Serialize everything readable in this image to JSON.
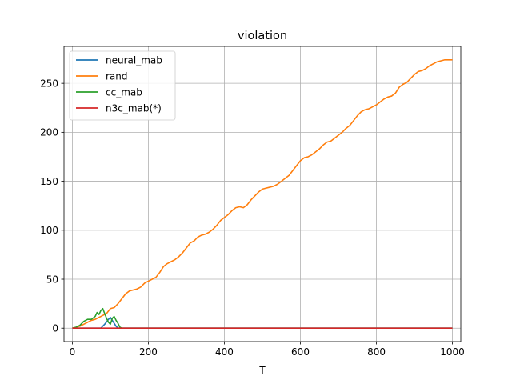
{
  "chart_data": {
    "type": "line",
    "title": "violation",
    "xlabel": "T",
    "ylabel": "",
    "xlim": [
      -22,
      1022
    ],
    "ylim": [
      -13.7,
      287.7
    ],
    "xticks": [
      "0",
      "200",
      "400",
      "600",
      "800",
      "1000"
    ],
    "yticks": [
      "0",
      "50",
      "100",
      "150",
      "200",
      "250"
    ],
    "grid": true,
    "legend_position": "top-left",
    "series": [
      {
        "name": "neural_mab",
        "color": "#1f77b4",
        "x": [
          0,
          60,
          75,
          85,
          95,
          100,
          105,
          115,
          120,
          1000
        ],
        "y": [
          0,
          0,
          0,
          4,
          9,
          11,
          8,
          2,
          0,
          0
        ]
      },
      {
        "name": "rand",
        "color": "#ff7f0e",
        "x": [
          0,
          10,
          20,
          30,
          40,
          50,
          60,
          70,
          75,
          80,
          90,
          100,
          110,
          120,
          130,
          140,
          150,
          160,
          170,
          180,
          190,
          200,
          210,
          220,
          230,
          240,
          250,
          260,
          270,
          280,
          290,
          300,
          310,
          320,
          330,
          340,
          350,
          360,
          370,
          380,
          390,
          400,
          410,
          420,
          430,
          440,
          450,
          460,
          470,
          480,
          490,
          500,
          510,
          520,
          530,
          540,
          550,
          560,
          570,
          580,
          590,
          600,
          610,
          620,
          630,
          640,
          650,
          660,
          670,
          680,
          690,
          700,
          710,
          720,
          730,
          740,
          750,
          760,
          770,
          780,
          790,
          800,
          810,
          820,
          830,
          840,
          850,
          860,
          870,
          880,
          890,
          900,
          910,
          920,
          930,
          940,
          950,
          960,
          970,
          980,
          990,
          1000
        ],
        "y": [
          0,
          1,
          2,
          4,
          6,
          8,
          9,
          11,
          12,
          13,
          15,
          20,
          21,
          25,
          30,
          35,
          38,
          39,
          40,
          42,
          46,
          48,
          50,
          52,
          57,
          63,
          66,
          68,
          70,
          73,
          77,
          82,
          87,
          89,
          93,
          95,
          96,
          98,
          101,
          105,
          110,
          113,
          116,
          120,
          123,
          124,
          123,
          126,
          131,
          135,
          139,
          142,
          143,
          144,
          145,
          147,
          150,
          153,
          156,
          161,
          166,
          171,
          174,
          175,
          177,
          180,
          183,
          187,
          190,
          191,
          194,
          197,
          200,
          204,
          207,
          212,
          217,
          221,
          223,
          224,
          226,
          228,
          231,
          234,
          236,
          237,
          240,
          246,
          249,
          251,
          255,
          259,
          262,
          263,
          265,
          268,
          270,
          272,
          273,
          274,
          274,
          274
        ]
      },
      {
        "name": "cc_mab",
        "color": "#2ca02c",
        "x": [
          0,
          10,
          20,
          30,
          40,
          50,
          60,
          65,
          70,
          75,
          80,
          85,
          90,
          95,
          100,
          105,
          110,
          115,
          120,
          125,
          130,
          1000
        ],
        "y": [
          0,
          1,
          3,
          7,
          9,
          9,
          12,
          16,
          14,
          18,
          20,
          15,
          10,
          6,
          4,
          10,
          12,
          8,
          5,
          1,
          0,
          0
        ]
      },
      {
        "name": "n3c_mab(*)",
        "color": "#d62728",
        "x": [
          0,
          1000
        ],
        "y": [
          0,
          0
        ]
      }
    ]
  }
}
